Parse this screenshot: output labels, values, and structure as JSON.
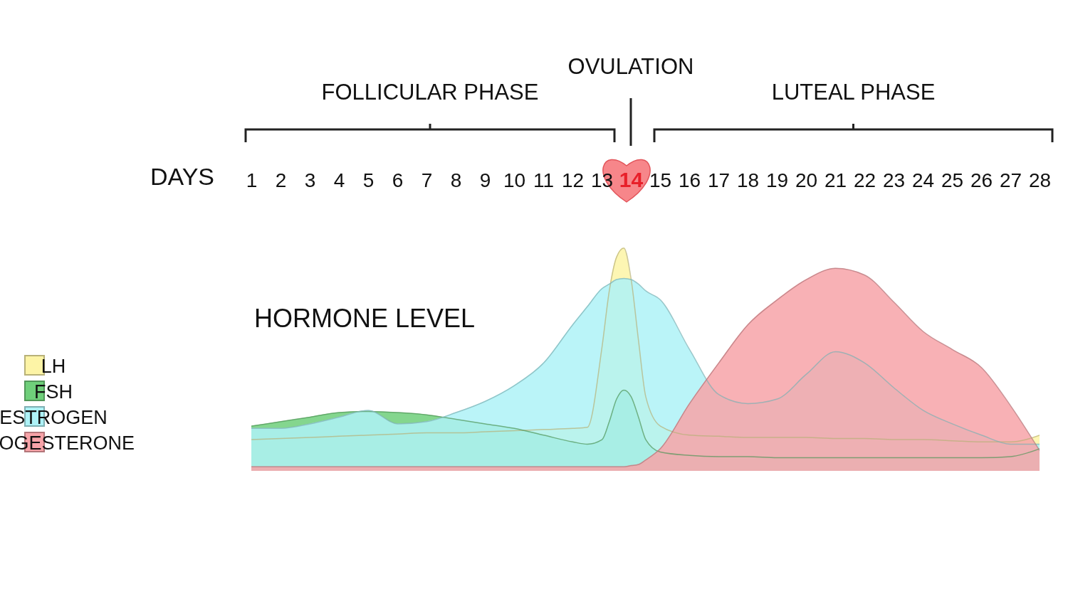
{
  "chart_data": {
    "type": "area",
    "x_label": "DAYS",
    "y_label": "HORMONE LEVEL",
    "x": [
      1,
      2,
      3,
      4,
      5,
      6,
      7,
      8,
      9,
      10,
      11,
      12,
      12.5,
      13,
      13.25,
      13.5,
      13.75,
      14,
      14.25,
      14.5,
      15,
      16,
      17,
      18,
      19,
      20,
      21,
      22,
      23,
      24,
      25,
      26,
      27,
      28
    ],
    "xlim": [
      1,
      28
    ],
    "xticks": [
      1,
      2,
      3,
      4,
      5,
      6,
      7,
      8,
      9,
      10,
      11,
      12,
      13,
      14,
      15,
      16,
      17,
      18,
      19,
      20,
      21,
      22,
      23,
      24,
      25,
      26,
      27,
      28
    ],
    "ylim": [
      0,
      100
    ],
    "tick_labels": "x",
    "grid": false,
    "legend": "left",
    "series": [
      {
        "name": "LH",
        "color": "#fdf4a6",
        "values": [
          14,
          14.5,
          15,
          15.5,
          16,
          16.5,
          17,
          17,
          17.5,
          18,
          18.5,
          19,
          19.5,
          55,
          80,
          95,
          99,
          85,
          58,
          33,
          20,
          16,
          15.5,
          15,
          15,
          15,
          14.5,
          14.5,
          14,
          14,
          13.5,
          13,
          13,
          16
        ]
      },
      {
        "name": "FSH",
        "color": "#6fcf7a",
        "values": [
          20,
          22,
          24,
          26,
          26.5,
          26,
          25,
          23,
          21,
          19,
          16,
          13,
          12,
          14,
          22,
          32,
          36,
          33,
          24,
          14,
          8.5,
          7,
          6.5,
          6.5,
          6,
          6,
          6,
          6,
          6,
          6,
          6,
          6,
          6.5,
          10
        ]
      },
      {
        "name": "ESTROGEN",
        "color": "#aef2f7",
        "values": [
          19,
          19,
          21,
          24,
          27,
          21,
          22,
          26,
          31,
          38,
          48,
          65,
          73,
          81,
          83,
          85,
          85.5,
          85,
          83,
          80,
          76,
          54,
          34,
          30,
          32,
          43,
          53,
          48,
          37,
          27,
          21,
          16,
          12,
          12
        ]
      },
      {
        "name": "PROGESTERONE",
        "color": "#f7a3a8",
        "values": [
          2,
          2,
          2,
          2,
          2,
          2,
          2,
          2,
          2,
          2,
          2,
          2,
          2,
          2,
          2,
          2,
          2,
          2.5,
          3,
          5,
          10,
          30,
          48,
          65,
          76,
          85,
          90,
          87,
          75,
          62,
          54,
          46,
          29,
          9
        ]
      }
    ],
    "phases": [
      {
        "label": "FOLLICULAR PHASE",
        "start": 1,
        "end": 13
      },
      {
        "label": "OVULATION",
        "day": 14
      },
      {
        "label": "LUTEAL PHASE",
        "start": 15,
        "end": 28
      }
    ]
  }
}
